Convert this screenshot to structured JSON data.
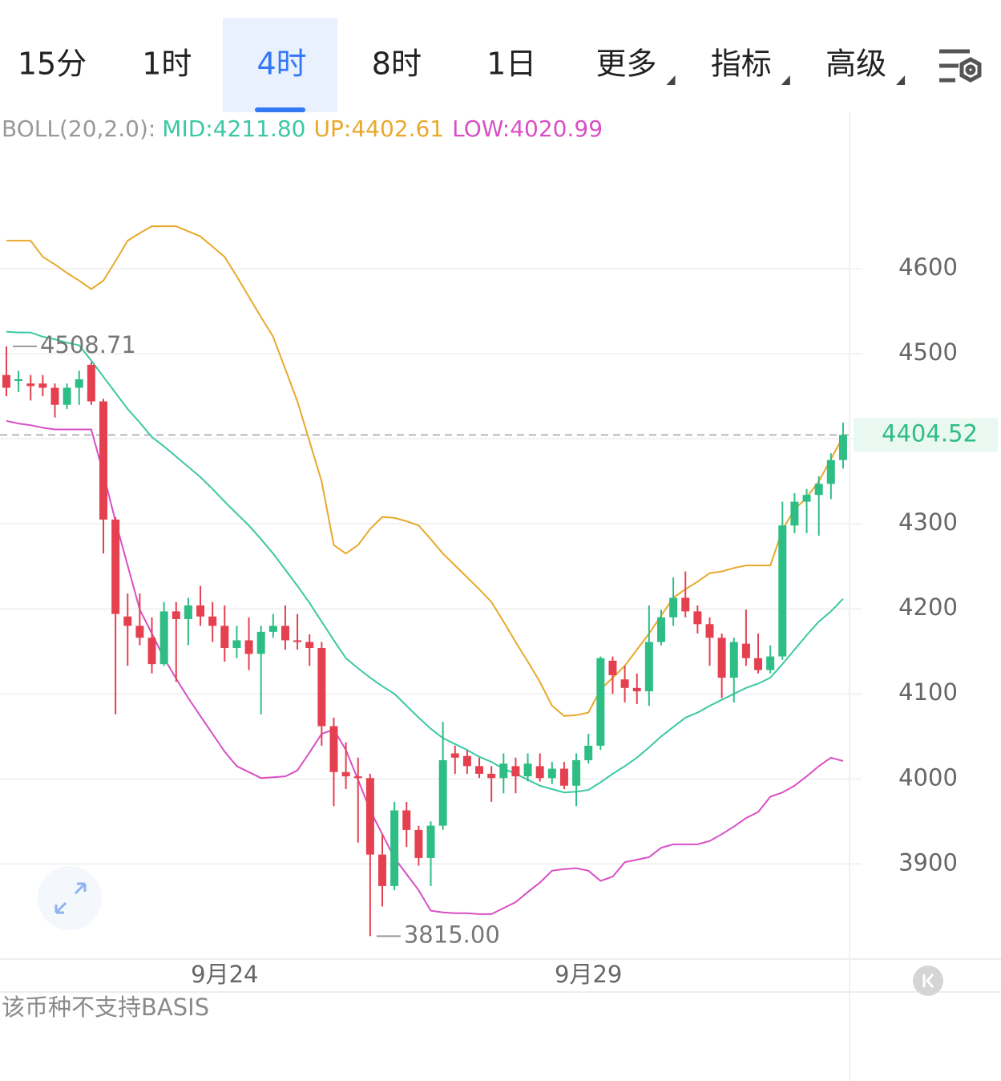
{
  "tabs": {
    "items": [
      "15分",
      "1时",
      "4时",
      "8时",
      "1日",
      "更多",
      "指标",
      "高级"
    ],
    "active": 2,
    "dropdowns": [
      5,
      6,
      7
    ]
  },
  "footer": "该币种不支持BASIS",
  "chart_data": {
    "type": "candlestick",
    "indicator": "BOLL(20,2.0):",
    "categories": [
      null,
      null,
      null,
      null,
      null,
      null,
      null,
      null,
      null,
      null,
      null,
      null,
      null,
      null,
      null,
      null,
      null,
      null,
      "9月24",
      null,
      null,
      null,
      null,
      null,
      null,
      null,
      null,
      null,
      null,
      null,
      null,
      null,
      null,
      null,
      null,
      null,
      null,
      null,
      null,
      null,
      null,
      null,
      null,
      null,
      null,
      null,
      null,
      null,
      "9月29",
      null,
      null,
      null,
      null,
      null,
      null,
      null,
      null,
      null,
      null,
      null,
      null,
      null,
      null,
      null,
      null,
      null,
      null,
      null,
      null,
      null
    ],
    "open": [
      4475,
      4468,
      4465,
      4465,
      4460,
      4440,
      4460,
      4487,
      4444,
      4305,
      4191,
      4180,
      4166,
      4135,
      4197,
      4188,
      4204,
      4191,
      4180,
      4154,
      4163,
      4147,
      4173,
      4180,
      4163,
      4161,
      4154,
      4062,
      4008,
      4003,
      4001,
      3911,
      3874,
      3963,
      3940,
      3907,
      3945,
      4030,
      4027,
      4015,
      4006,
      4001,
      4015,
      4003,
      4015,
      4001,
      4012,
      3992,
      4022,
      4039,
      4139,
      4117,
      4107,
      4103,
      4161,
      4190,
      4213,
      4197,
      4182,
      4166,
      4119,
      4159,
      4142,
      4128,
      4144,
      4298,
      4326,
      4334,
      4347,
      4375
    ],
    "high": [
      4508.71,
      4480,
      4475,
      4475,
      4465,
      4465,
      4480,
      4490,
      4447,
      4308,
      4218,
      4218,
      4190,
      4208,
      4208,
      4213,
      4227,
      4208,
      4204,
      4180,
      4190,
      4180,
      4194,
      4204,
      4194,
      4170,
      4161,
      4072,
      4043,
      4025,
      4006,
      3935,
      3973,
      3973,
      3945,
      3950,
      4067,
      4039,
      4034,
      4025,
      4015,
      4030,
      4025,
      4030,
      4030,
      4020,
      4020,
      4030,
      4053,
      4144,
      4144,
      4133,
      4124,
      4204,
      4199,
      4237,
      4244,
      4204,
      4190,
      4171,
      4166,
      4199,
      4171,
      4157,
      4326,
      4336,
      4341,
      4356,
      4383,
      4419
    ],
    "low": [
      4450,
      4455,
      4445,
      4450,
      4425,
      4435,
      4440,
      4440,
      4265,
      4076,
      4133,
      4157,
      4124,
      4133,
      4114,
      4157,
      4180,
      4161,
      4138,
      4142,
      4128,
      4076,
      4166,
      4152,
      4152,
      4133,
      4039,
      3968,
      3988,
      3925,
      3815,
      3850,
      3869,
      3920,
      3898,
      3874,
      3940,
      4006,
      4006,
      4001,
      3973,
      3983,
      3983,
      3997,
      3997,
      3994,
      3988,
      3968,
      4018,
      4034,
      4100,
      4090,
      4088,
      4086,
      4157,
      4180,
      4190,
      4171,
      4133,
      4095,
      4090,
      4133,
      4124,
      4124,
      4140,
      4289,
      4289,
      4286,
      4329,
      4365
    ],
    "close": [
      4460,
      4470,
      4462,
      4460,
      4440,
      4460,
      4470,
      4444,
      4305,
      4194,
      4180,
      4166,
      4135,
      4197,
      4188,
      4204,
      4191,
      4180,
      4154,
      4163,
      4147,
      4173,
      4180,
      4163,
      4161,
      4154,
      4062,
      4008,
      4003,
      4001,
      3911,
      3874,
      3963,
      3940,
      3907,
      3945,
      4022,
      4025,
      4015,
      4006,
      4001,
      4018,
      4003,
      4018,
      4001,
      4012,
      3992,
      4022,
      4039,
      4142,
      4122,
      4107,
      4103,
      4161,
      4190,
      4213,
      4197,
      4182,
      4166,
      4119,
      4161,
      4142,
      4128,
      4144,
      4298,
      4326,
      4334,
      4347,
      4375,
      4404.52
    ],
    "up_color": "#2ebd85",
    "down_color": "#e5404f",
    "series": [
      {
        "name": "MID:4211.80",
        "color": "#3cc8a4",
        "values": [
          4526,
          4525,
          4525,
          4520,
          4517,
          4513,
          4510,
          4492,
          4473,
          4454,
          4435,
          4419,
          4402,
          4391,
          4379,
          4367,
          4355,
          4341,
          4326,
          4312,
          4298,
          4282,
          4265,
          4246,
          4227,
          4207,
          4185,
          4163,
          4142,
          4130,
          4119,
          4109,
          4100,
          4086,
          4072,
          4059,
          4048,
          4041,
          4034,
          4026,
          4020,
          4012,
          4006,
          3999,
          3992,
          3988,
          3984,
          3985,
          3987,
          3996,
          4006,
          4015,
          4025,
          4037,
          4050,
          4061,
          4072,
          4078,
          4086,
          4093,
          4100,
          4107,
          4112,
          4119,
          4135,
          4152,
          4169,
          4185,
          4197,
          4211.8
        ]
      },
      {
        "name": "UP:4402.61",
        "color": "#e8a92c",
        "values": [
          4633,
          4633,
          4633,
          4614,
          4605,
          4595,
          4586,
          4576,
          4586,
          4609,
          4633,
          4642,
          4650,
          4650,
          4650,
          4644,
          4638,
          4626,
          4614,
          4591,
          4567,
          4543,
          4520,
          4482,
          4444,
          4397,
          4350,
          4275,
          4265,
          4275,
          4294,
          4308,
          4307,
          4303,
          4298,
          4282,
          4265,
          4251,
          4237,
          4223,
          4208,
          4185,
          4161,
          4138,
          4114,
          4086,
          4074,
          4075,
          4078,
          4105,
          4119,
          4133,
          4152,
          4171,
          4192,
          4213,
          4223,
          4232,
          4242,
          4244,
          4248,
          4251,
          4251,
          4251,
          4293,
          4317,
          4331,
          4350,
          4376,
          4402.61
        ]
      },
      {
        "name": "LOW:4020.99",
        "color": "#d94fc4",
        "values": [
          4421,
          4418,
          4416,
          4413,
          4411,
          4411,
          4411,
          4411,
          4359,
          4303,
          4251,
          4199,
          4171,
          4142,
          4118,
          4095,
          4074,
          4053,
          4032,
          4015,
          4008,
          4001,
          4002,
          4003,
          4010,
          4031,
          4053,
          4058,
          4034,
          3999,
          3963,
          3935,
          3907,
          3888,
          3869,
          3845,
          3843,
          3842,
          3842,
          3841,
          3841,
          3848,
          3855,
          3867,
          3878,
          3892,
          3894,
          3895,
          3892,
          3880,
          3885,
          3902,
          3905,
          3908,
          3919,
          3923,
          3923,
          3923,
          3927,
          3935,
          3944,
          3954,
          3961,
          3979,
          3984,
          3992,
          4003,
          4015,
          4025,
          4020.99
        ]
      }
    ],
    "ylim": [
      3789,
      4784
    ],
    "yticks": [
      3900,
      4000,
      4100,
      4200,
      4300,
      4400,
      4500,
      4600
    ],
    "grid": true,
    "annotations": [
      {
        "kind": "high",
        "value": 4508.71,
        "label": "4508.71"
      },
      {
        "kind": "low",
        "value": 3815,
        "label": "3815.00"
      }
    ],
    "last_price": {
      "value": 4404.52,
      "label": "4404.52"
    }
  }
}
